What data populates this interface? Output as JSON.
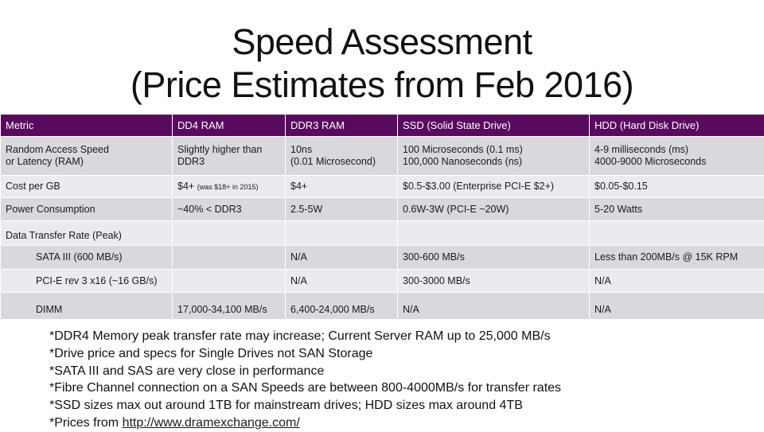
{
  "title": {
    "line1": "Speed Assessment",
    "line2": "(Price Estimates from Feb 2016)"
  },
  "table": {
    "headers": [
      "Metric",
      "DD4 RAM",
      "DDR3 RAM",
      "SSD (Solid State Drive)",
      "HDD (Hard Disk Drive)"
    ],
    "ram_speed": {
      "metric_l1": "Random Access Speed",
      "metric_l2": "or Latency (RAM)",
      "dd4_l1": "Slightly higher than",
      "dd4_l2": "DDR3",
      "ddr3_l1": "10ns",
      "ddr3_l2": "(0.01 Microsecond)",
      "ssd_l1": "100 Microseconds (0.1 ms)",
      "ssd_l2": "100,000 Nanoseconds (ns)",
      "hdd_l1": "4-9 milliseconds (ms)",
      "hdd_l2": "4000-9000 Microseconds"
    },
    "cost": {
      "metric": "Cost per GB",
      "dd4": "$4+",
      "dd4_note": "(was $18+ in 2015)",
      "ddr3": "$4+",
      "ssd": "$0.5-$3.00 (Enterprise PCI-E $2+)",
      "hdd": "$0.05-$0.15"
    },
    "power": {
      "metric": "Power Consumption",
      "dd4": "~40% < DDR3",
      "ddr3": "2.5-5W",
      "ssd": "0.6W-3W (PCI-E ~20W)",
      "hdd": "5-20 Watts"
    },
    "dtr": {
      "metric": "Data Transfer Rate (Peak)"
    },
    "sata": {
      "metric": "SATA III (600 MB/s)",
      "dd4": "",
      "ddr3": "N/A",
      "ssd": "300-600 MB/s",
      "hdd": "Less than 200MB/s @ 15K RPM"
    },
    "pcie": {
      "metric": "PCI-E rev 3 x16 (~16 GB/s)",
      "dd4": "",
      "ddr3": "N/A",
      "ssd": "300-3000 MB/s",
      "hdd": "N/A"
    },
    "dimm": {
      "metric": "DIMM",
      "dd4": "17,000-34,100 MB/s",
      "ddr3": "6,400-24,000 MB/s",
      "ssd": "N/A",
      "hdd": "N/A"
    }
  },
  "notes": [
    "*DDR4 Memory peak transfer rate may increase; Current Server RAM up to 25,000 MB/s",
    "*Drive price and specs for Single Drives not SAN Storage",
    "*SATA III and SAS are very close in performance",
    "*Fibre Channel connection on a SAN Speeds are between 800-4000MB/s for transfer rates",
    "*SSD sizes max out around 1TB for mainstream drives; HDD sizes max around 4TB"
  ],
  "prices_note": {
    "prefix": "*Prices from ",
    "link": "http://www.dramexchange.com/"
  },
  "colors": {
    "header_bg": "#5a0a5e",
    "row_dark": "#d9d8dd",
    "row_light": "#eceaef"
  }
}
